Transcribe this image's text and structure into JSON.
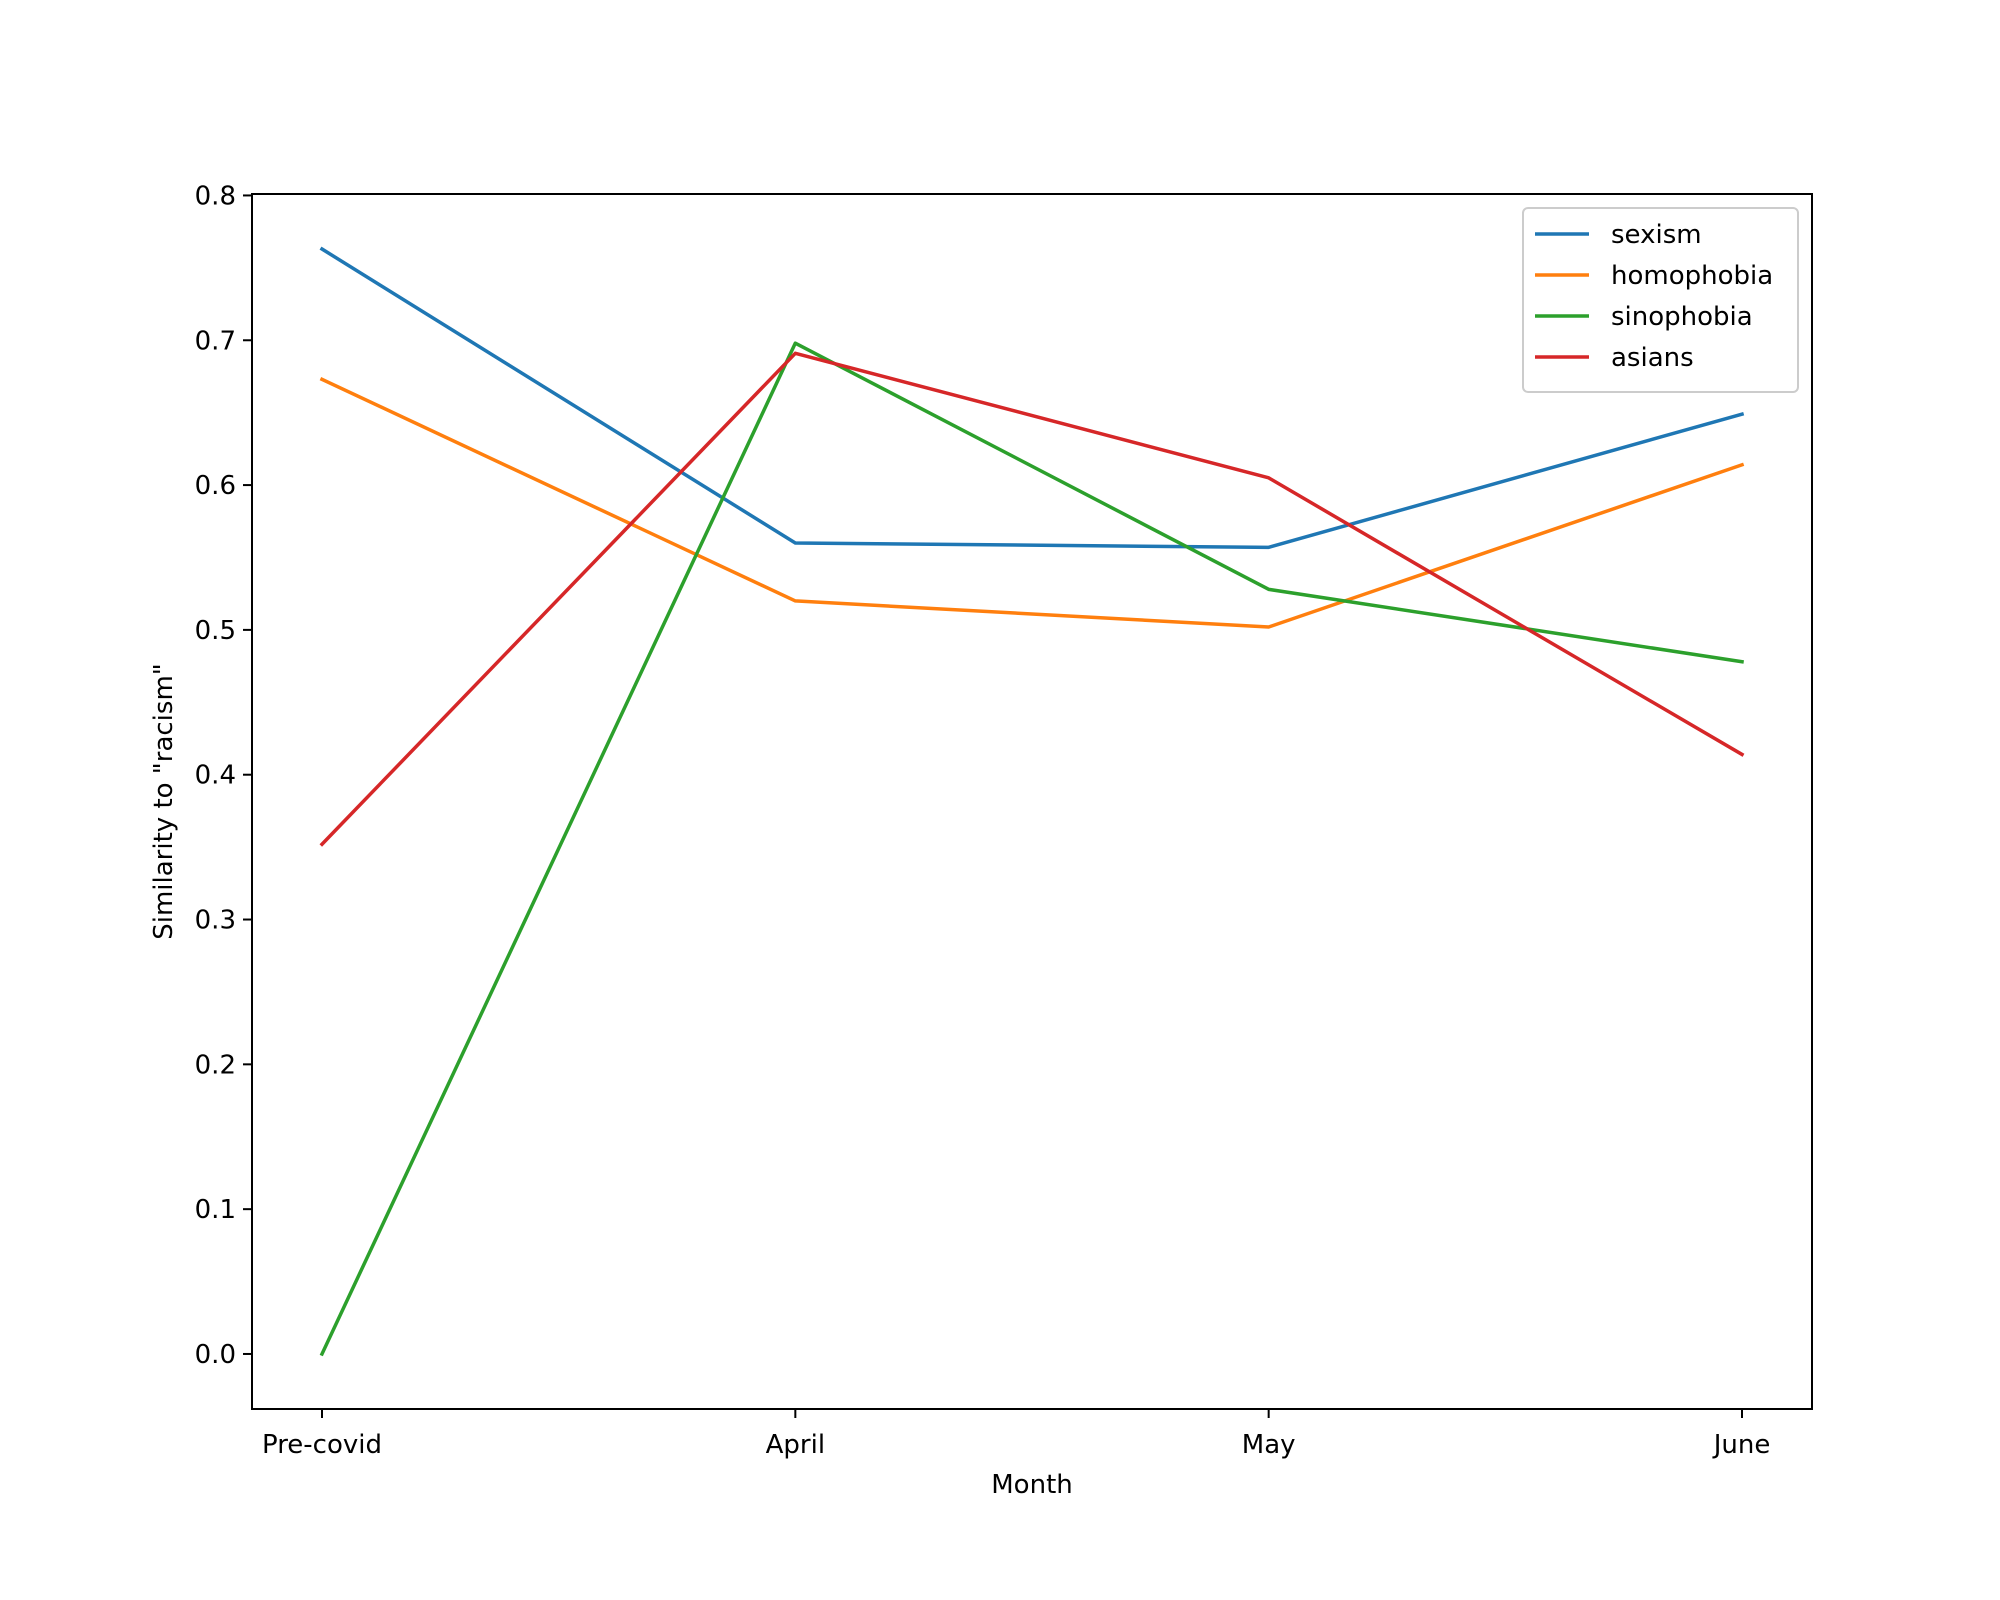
{
  "chart_data": {
    "type": "line",
    "categories": [
      "Pre-covid",
      "April",
      "May",
      "June"
    ],
    "series": [
      {
        "name": "sexism",
        "color": "#1f77b4",
        "values": [
          0.763,
          0.56,
          0.557,
          0.649
        ]
      },
      {
        "name": "homophobia",
        "color": "#ff7f0e",
        "values": [
          0.673,
          0.52,
          0.502,
          0.614
        ]
      },
      {
        "name": "sinophobia",
        "color": "#2ca02c",
        "values": [
          0.0,
          0.698,
          0.528,
          0.478
        ]
      },
      {
        "name": "asians",
        "color": "#d62728",
        "values": [
          0.352,
          0.691,
          0.605,
          0.414
        ]
      }
    ],
    "xlabel": "Month",
    "ylabel": "Similarity to \"racism\"",
    "ylim": [
      -0.038,
      0.801
    ],
    "yticks": [
      "0.0",
      "0.1",
      "0.2",
      "0.3",
      "0.4",
      "0.5",
      "0.6",
      "0.7",
      "0.8"
    ],
    "grid": false,
    "legend_position": "top-right"
  }
}
